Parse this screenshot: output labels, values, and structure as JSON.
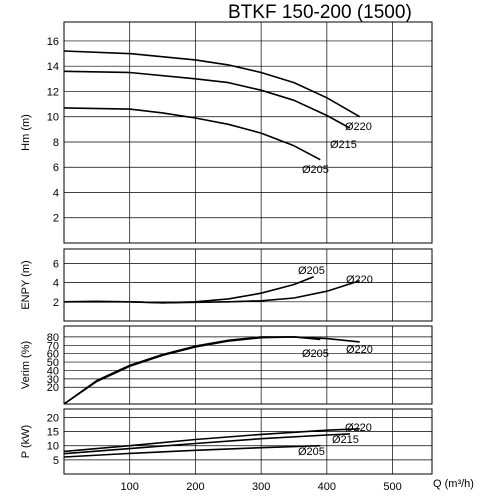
{
  "title": "BTKF 150-200 (1500)",
  "x_axis": {
    "label": "Q (m³/h)",
    "ticks": [
      100,
      200,
      300,
      400,
      500
    ],
    "range": [
      0,
      560
    ],
    "gridlines": [
      100,
      200,
      300,
      400,
      500
    ]
  },
  "chart_data": [
    {
      "type": "line",
      "panel": "head",
      "ylabel": "Hm (m)",
      "ylim": [
        0,
        17.5
      ],
      "yticks": [
        2,
        4,
        6,
        8,
        10,
        12,
        14,
        16
      ],
      "grid": true,
      "series": [
        {
          "name": "Ø220",
          "x": [
            0,
            100,
            200,
            250,
            300,
            350,
            400,
            450
          ],
          "y": [
            15.2,
            15.0,
            14.5,
            14.1,
            13.5,
            12.7,
            11.5,
            10.0
          ]
        },
        {
          "name": "Ø215",
          "x": [
            0,
            100,
            200,
            250,
            300,
            350,
            400,
            435
          ],
          "y": [
            13.6,
            13.5,
            13.0,
            12.7,
            12.1,
            11.3,
            10.1,
            9.1
          ]
        },
        {
          "name": "Ø205",
          "x": [
            0,
            100,
            150,
            200,
            250,
            300,
            350,
            390
          ],
          "y": [
            10.7,
            10.6,
            10.3,
            9.9,
            9.4,
            8.7,
            7.7,
            6.6
          ]
        }
      ],
      "curve_labels": [
        "Ø220",
        "Ø215",
        "Ø205"
      ]
    },
    {
      "type": "line",
      "panel": "npsh",
      "ylabel": "ENPY (m)",
      "ylim": [
        0,
        7.5
      ],
      "yticks": [
        2,
        4,
        6
      ],
      "grid": true,
      "series": [
        {
          "name": "Ø205",
          "x": [
            0,
            50,
            100,
            150,
            200,
            250,
            300,
            350,
            380
          ],
          "y": [
            2.0,
            2.05,
            2.0,
            1.9,
            2.0,
            2.3,
            2.9,
            3.8,
            4.6
          ]
        },
        {
          "name": "Ø220",
          "x": [
            0,
            100,
            150,
            200,
            250,
            300,
            350,
            400,
            450
          ],
          "y": [
            2.0,
            2.0,
            1.9,
            1.95,
            2.0,
            2.1,
            2.4,
            3.1,
            4.2
          ]
        }
      ],
      "curve_labels": [
        "Ø205",
        "Ø220"
      ]
    },
    {
      "type": "line",
      "panel": "efficiency",
      "ylabel": "Verim (%)",
      "ylim": [
        0,
        93
      ],
      "yticks": [
        20,
        30,
        40,
        50,
        60,
        70,
        80
      ],
      "grid": true,
      "series": [
        {
          "name": "Ø220",
          "x": [
            0,
            50,
            100,
            150,
            200,
            250,
            300,
            350,
            400,
            450
          ],
          "y": [
            0,
            27,
            45,
            58,
            68,
            75,
            79,
            80,
            78,
            74
          ]
        },
        {
          "name": "Ø205",
          "x": [
            0,
            50,
            100,
            150,
            200,
            250,
            300,
            350,
            390
          ],
          "y": [
            0,
            28,
            46,
            59,
            69,
            76,
            80,
            80,
            77
          ]
        }
      ],
      "curve_labels": [
        "Ø220",
        "Ø205"
      ]
    },
    {
      "type": "line",
      "panel": "power",
      "ylabel": "P (kW)",
      "ylim": [
        0,
        23
      ],
      "yticks": [
        5,
        10,
        15,
        20
      ],
      "grid": true,
      "series": [
        {
          "name": "Ø220",
          "x": [
            0,
            100,
            200,
            300,
            400,
            450
          ],
          "y": [
            8.0,
            10.0,
            12.2,
            14.0,
            15.5,
            16.0
          ]
        },
        {
          "name": "Ø215",
          "x": [
            0,
            100,
            200,
            300,
            400,
            435
          ],
          "y": [
            7.2,
            9.0,
            10.8,
            12.5,
            13.8,
            14.2
          ]
        },
        {
          "name": "Ø205",
          "x": [
            0,
            100,
            200,
            300,
            390
          ],
          "y": [
            6.0,
            7.3,
            8.4,
            9.3,
            10.0
          ]
        }
      ],
      "curve_labels": [
        "Ø220",
        "Ø215",
        "Ø205"
      ]
    }
  ]
}
